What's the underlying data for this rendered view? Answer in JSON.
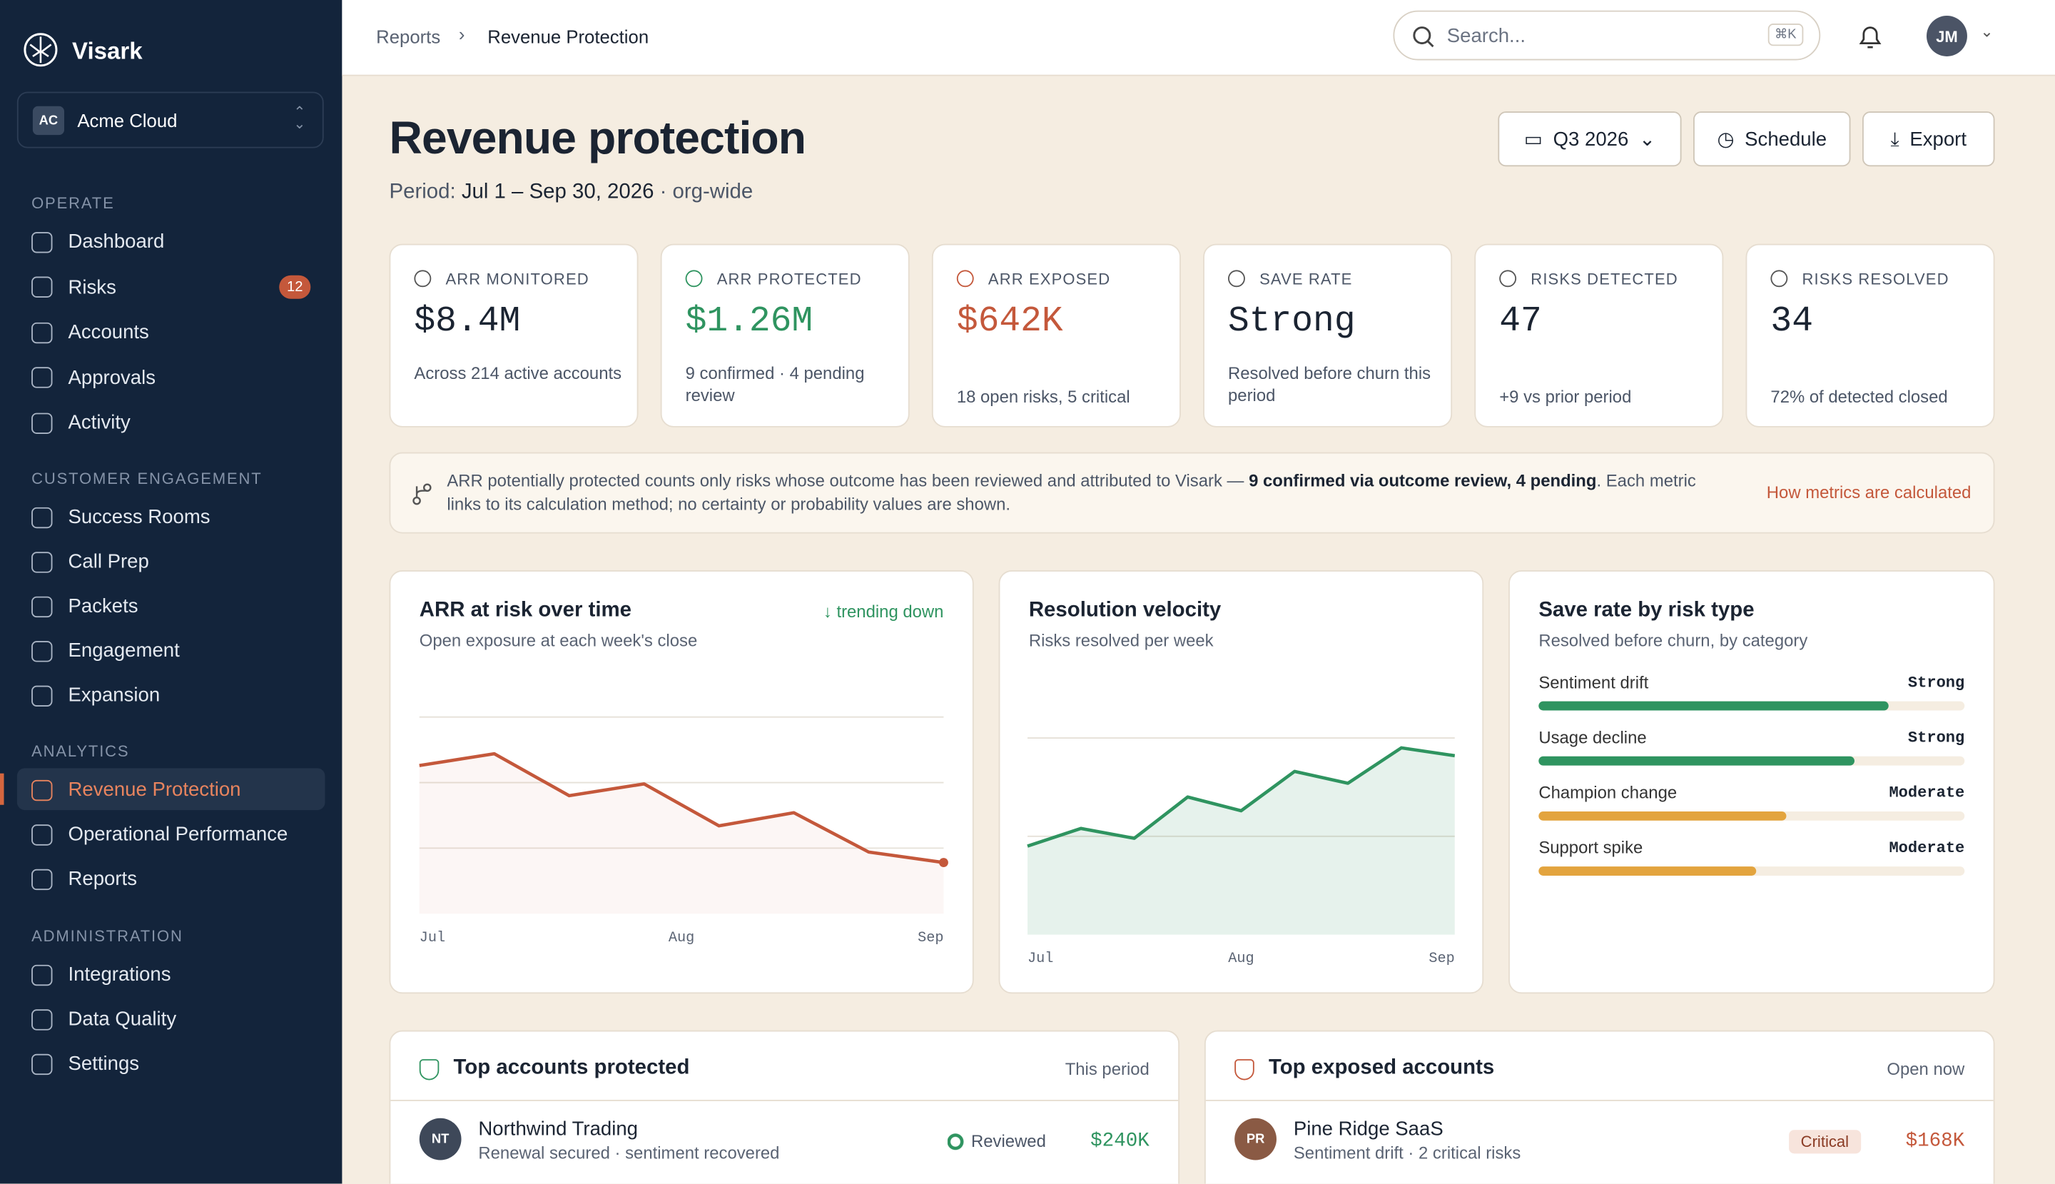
{
  "sidebar": {
    "brand": "Visark",
    "workspace": {
      "initials": "AC",
      "name": "Acme Cloud"
    },
    "sections": [
      {
        "title": "OPERATE",
        "items": [
          "Dashboard",
          "Risks",
          "Accounts",
          "Approvals",
          "Activity"
        ]
      },
      {
        "title": "CUSTOMER ENGAGEMENT",
        "items": [
          "Success Rooms",
          "Call Prep",
          "Packets",
          "Engagement",
          "Expansion"
        ]
      },
      {
        "title": "ANALYTICS",
        "items": [
          "Revenue Protection",
          "Operational Performance",
          "Reports"
        ]
      },
      {
        "title": "ADMINISTRATION",
        "items": [
          "Integrations",
          "Data Quality",
          "Settings"
        ]
      }
    ],
    "risks_badge": "12"
  },
  "topbar": {
    "breadcrumb": [
      "Reports",
      "Revenue Protection"
    ],
    "search": "Search...",
    "shortcut": "⌘K",
    "avatar": "JM"
  },
  "header": {
    "title": "Revenue protection",
    "period_label": "Period:",
    "period_range": "Jul 1 – Sep 30, 2026",
    "period_scope": "· org-wide",
    "buttons": [
      "Q3 2026",
      "Schedule",
      "Export"
    ]
  },
  "kpis": [
    {
      "label": "ARR MONITORED",
      "value": "$8.4M",
      "sub": "Across 214 active accounts",
      "color": "#1b2432"
    },
    {
      "label": "ARR PROTECTED",
      "value": "$1.26M",
      "sub": "9 confirmed · 4 pending review",
      "color": "#2f9460"
    },
    {
      "label": "ARR EXPOSED",
      "value": "$642K",
      "sub": "18 open risks, 5 critical",
      "color": "#c4583b"
    },
    {
      "label": "SAVE RATE",
      "value": "Strong",
      "sub": "Resolved before churn this period",
      "color": "#1b2432"
    },
    {
      "label": "RISKS DETECTED",
      "value": "47",
      "sub": "+9 vs prior period",
      "color": "#1b2432"
    },
    {
      "label": "RISKS RESOLVED",
      "value": "34",
      "sub": "72% of detected closed",
      "color": "#1b2432"
    }
  ],
  "note": {
    "before": "ARR potentially protected counts only risks whose outcome has been reviewed and attributed to Visark — ",
    "bold": "9 confirmed via outcome review, 4 pending",
    "after": ". Each metric links to its calculation method; no certainty or probability values are shown.",
    "link": "How metrics are calculated"
  },
  "charts": [
    {
      "type": "line",
      "title": "ARR at risk over time",
      "subtitle": "Open exposure at each week's close",
      "trend": "↓ trending down",
      "x_labels": [
        "Jul",
        "Aug",
        "Sep"
      ],
      "values": [
        2.26,
        2.44,
        1.8,
        1.98,
        1.34,
        1.54,
        0.94,
        0.78
      ],
      "ylim": [
        0,
        4
      ],
      "yticks": [
        1,
        2,
        3
      ],
      "color": "#c4583b"
    },
    {
      "type": "area",
      "title": "Resolution velocity",
      "subtitle": "Risks resolved per week",
      "x_labels": [
        "Jul",
        "Aug",
        "Sep"
      ],
      "values": [
        4.5,
        5.4,
        4.9,
        7,
        6.3,
        8.3,
        7.7,
        9.5,
        9.1
      ],
      "ylim": [
        0,
        11
      ],
      "yticks": [
        5,
        10
      ],
      "color": "#2f9460"
    },
    {
      "type": "hbar",
      "title": "Save rate by risk type",
      "subtitle": "Resolved before churn, by category",
      "categories": [
        "Sentiment drift",
        "Usage decline",
        "Champion change",
        "Support spike"
      ],
      "values": [
        82,
        74,
        58,
        51
      ],
      "value_labels": [
        "Strong",
        "Strong",
        "Moderate",
        "Moderate"
      ],
      "xlim": [
        0,
        100
      ],
      "colors": [
        "#2f9460",
        "#2f9460",
        "#e3a43e",
        "#e3a43e"
      ]
    }
  ],
  "tables": [
    {
      "title": "Top accounts protected",
      "meta": "This period",
      "rows": [
        {
          "initials": "NT",
          "name": "Northwind Trading",
          "detail": "Renewal secured · sentiment recovered",
          "status": "Reviewed",
          "amount": "$240K"
        }
      ]
    },
    {
      "title": "Top exposed accounts",
      "meta": "Open now",
      "rows": [
        {
          "initials": "PR",
          "name": "Pine Ridge SaaS",
          "detail": "Sentiment drift · 2 critical risks",
          "status": "Critical",
          "amount": "$168K"
        }
      ]
    }
  ]
}
